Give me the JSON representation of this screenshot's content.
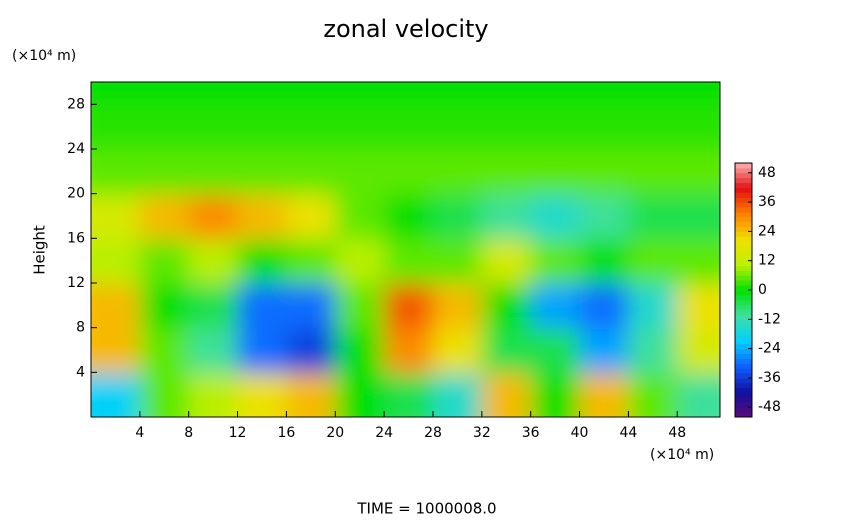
{
  "chart_data": {
    "type": "heatmap",
    "title": "zonal velocity",
    "ylabel": "Height",
    "xunit": "(×10⁴ m)",
    "yunit": "(×10⁴ m)",
    "footer": "TIME = 1000008.0",
    "xlim": [
      0,
      51.5
    ],
    "ylim": [
      0,
      30
    ],
    "xticks": [
      4,
      8,
      12,
      16,
      20,
      24,
      28,
      32,
      36,
      40,
      44,
      48
    ],
    "yticks": [
      4,
      8,
      12,
      16,
      20,
      24,
      28
    ],
    "xedges": [
      0,
      4,
      8,
      12,
      16,
      20,
      24,
      28,
      32,
      36,
      40,
      44,
      48,
      51.5
    ],
    "yedges": [
      0,
      4,
      8,
      12,
      16,
      20,
      24,
      28,
      30
    ],
    "z": [
      [
        -20,
        5,
        10,
        20,
        25,
        0,
        -5,
        -15,
        25,
        0,
        25,
        5,
        -10
      ],
      [
        25,
        5,
        -10,
        -30,
        -35,
        0,
        30,
        20,
        -5,
        -5,
        -25,
        -10,
        15
      ],
      [
        25,
        0,
        -5,
        -30,
        -30,
        5,
        35,
        25,
        0,
        -25,
        -30,
        -15,
        20
      ],
      [
        10,
        5,
        10,
        0,
        5,
        10,
        5,
        5,
        15,
        5,
        0,
        5,
        5
      ],
      [
        15,
        25,
        30,
        25,
        20,
        5,
        0,
        -5,
        -10,
        -15,
        -10,
        -5,
        -5
      ],
      [
        5,
        5,
        5,
        5,
        5,
        5,
        5,
        5,
        5,
        5,
        5,
        5,
        5
      ],
      [
        2,
        2,
        2,
        2,
        2,
        2,
        2,
        2,
        2,
        2,
        2,
        2,
        2
      ],
      [
        0,
        0,
        0,
        0,
        0,
        0,
        0,
        0,
        0,
        0,
        0,
        0,
        0
      ]
    ],
    "clim": [
      -52,
      52
    ],
    "cticks": [
      48,
      36,
      24,
      12,
      0,
      -12,
      -24,
      -36,
      -48
    ],
    "colors": [
      "#5a0a7a",
      "#1010a0",
      "#1060ff",
      "#00d0ff",
      "#40e0a0",
      "#00e000",
      "#c0f000",
      "#f0e000",
      "#ff8000",
      "#e01010",
      "#ffb0b0"
    ]
  }
}
